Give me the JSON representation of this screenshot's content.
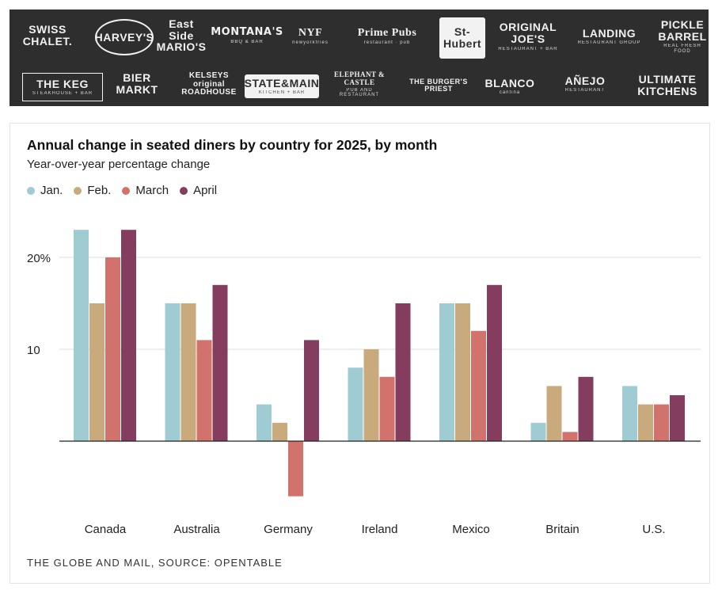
{
  "logos": [
    {
      "name": "logo-swiss-chalet",
      "lines": [
        "SWISS",
        "CHALET."
      ],
      "sub": ""
    },
    {
      "name": "logo-harveys",
      "lines": [
        "HARVEY'S"
      ],
      "sub": ""
    },
    {
      "name": "logo-east-side-marios",
      "lines": [
        "East Side",
        "MARIO'S"
      ],
      "sub": ""
    },
    {
      "name": "logo-montanas",
      "lines": [
        "MONTANA'S"
      ],
      "sub": "BBQ & BAR"
    },
    {
      "name": "logo-nyf",
      "lines": [
        "NYF"
      ],
      "sub": "newyorkfries"
    },
    {
      "name": "logo-prime-pubs",
      "lines": [
        "Prime Pubs"
      ],
      "sub": "restaurant · pub"
    },
    {
      "name": "logo-st-hubert",
      "lines": [
        "St-Hubert"
      ],
      "sub": ""
    },
    {
      "name": "logo-original-joes",
      "lines": [
        "ORIGINAL",
        "JOE'S"
      ],
      "sub": "RESTAURANT + BAR"
    },
    {
      "name": "logo-landing",
      "lines": [
        "LANDING"
      ],
      "sub": "RESTAURANT GROUP"
    },
    {
      "name": "logo-pickle-barrel",
      "lines": [
        "PICKLE",
        "BARREL"
      ],
      "sub": "REAL FRESH FOOD"
    },
    {
      "name": "logo-the-keg",
      "lines": [
        "THE KEG"
      ],
      "sub": "STEAKHOUSE + BAR"
    },
    {
      "name": "logo-bier-markt",
      "lines": [
        "BIER",
        "MARKT"
      ],
      "sub": ""
    },
    {
      "name": "logo-kelseys",
      "lines": [
        "KELSEYS",
        "original",
        "ROADHOUSE"
      ],
      "sub": ""
    },
    {
      "name": "logo-state-main",
      "lines": [
        "STATE&MAIN"
      ],
      "sub": "KITCHEN + BAR"
    },
    {
      "name": "logo-elephant-castle",
      "lines": [
        "ELEPHANT & CASTLE"
      ],
      "sub": "PUB AND RESTAURANT"
    },
    {
      "name": "logo-burgers-priest",
      "lines": [
        "THE BURGER'S PRIEST"
      ],
      "sub": ""
    },
    {
      "name": "logo-blanco",
      "lines": [
        "BLANCO"
      ],
      "sub": "cantina"
    },
    {
      "name": "logo-anejo",
      "lines": [
        "AÑEJO"
      ],
      "sub": "RESTAURANT"
    },
    {
      "name": "logo-ultimate-kitchens",
      "lines": [
        "ULTIMATE",
        "KITCHENS"
      ],
      "sub": ""
    }
  ],
  "chart_data": {
    "type": "bar",
    "title": "Annual change in seated diners by country for 2025, by month",
    "subtitle": "Year-over-year percentage change",
    "categories": [
      "Canada",
      "Australia",
      "Germany",
      "Ireland",
      "Mexico",
      "Britain",
      "U.S."
    ],
    "series": [
      {
        "name": "Jan.",
        "color": "#9fcbd3",
        "values": [
          23,
          15,
          4,
          8,
          15,
          2,
          6
        ]
      },
      {
        "name": "Feb.",
        "color": "#c9aa7c",
        "values": [
          15,
          15,
          2,
          10,
          15,
          6,
          4
        ]
      },
      {
        "name": "March",
        "color": "#d2726d",
        "values": [
          20,
          11,
          -6,
          7,
          12,
          1,
          4
        ]
      },
      {
        "name": "April",
        "color": "#843d5f",
        "values": [
          23,
          17,
          11,
          15,
          17,
          7,
          5
        ]
      }
    ],
    "ylim": [
      -6.5,
      24.5
    ],
    "yticks": [
      {
        "value": 10,
        "label": "10"
      },
      {
        "value": 20,
        "label": "20%"
      }
    ],
    "grid": true,
    "legend": "top-left",
    "source": "THE GLOBE AND MAIL, SOURCE: OPENTABLE"
  }
}
